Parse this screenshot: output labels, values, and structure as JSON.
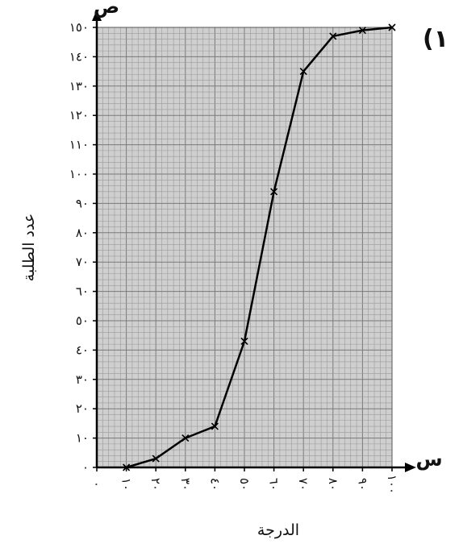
{
  "panel_label": "(١",
  "chart_data": {
    "type": "line",
    "title": "",
    "xlabel": "الدرجة",
    "ylabel": "عدد الطلبة",
    "x_axis_letter": "س",
    "y_axis_letter": "ص",
    "x": [
      10,
      20,
      30,
      40,
      50,
      60,
      70,
      80,
      90,
      100
    ],
    "x_tick_labels": [
      "٠",
      "١٠",
      "٢٠",
      "٣٠",
      "٤٠",
      "٥٠",
      "٦٠",
      "٧٠",
      "٨٠",
      "٩٠",
      "١٠٠"
    ],
    "x_ticks": [
      0,
      10,
      20,
      30,
      40,
      50,
      60,
      70,
      80,
      90,
      100
    ],
    "y_tick_labels": [
      "٠",
      "١٠",
      "٢٠",
      "٣٠",
      "٤٠",
      "٥٠",
      "٦٠",
      "٧٠",
      "٨٠",
      "٩٠",
      "١٠٠",
      "١١٠",
      "١٢٠",
      "١٣٠",
      "١٤٠",
      "١٥٠"
    ],
    "y_ticks": [
      0,
      10,
      20,
      30,
      40,
      50,
      60,
      70,
      80,
      90,
      100,
      110,
      120,
      130,
      140,
      150
    ],
    "series": [
      {
        "values": [
          0,
          3,
          10,
          14,
          43,
          94,
          135,
          147,
          149,
          150
        ]
      }
    ],
    "xlim": [
      0,
      100
    ],
    "ylim": [
      0,
      150
    ],
    "grid": true,
    "grid_color": "#9a9a9a",
    "plot_bg": "#cfcfcf",
    "line_color": "#000000"
  }
}
